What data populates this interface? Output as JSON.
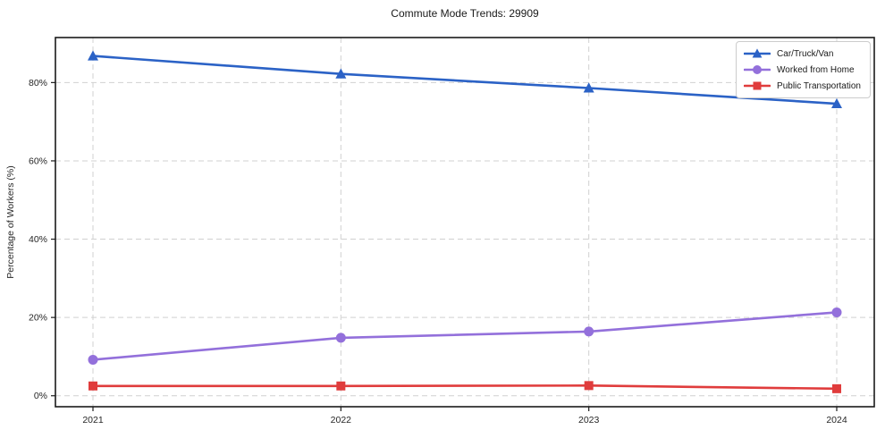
{
  "chart_data": {
    "type": "line",
    "title": "Commute Mode Trends: 29909",
    "xlabel": "",
    "ylabel": "Percentage of Workers (%)",
    "categories": [
      "2021",
      "2022",
      "2023",
      "2024"
    ],
    "series": [
      {
        "name": "Car/Truck/Van",
        "values": [
          86.8,
          82.2,
          78.6,
          74.6
        ],
        "color": "#2b62c6",
        "marker": "triangle"
      },
      {
        "name": "Worked from Home",
        "values": [
          9.2,
          14.8,
          16.4,
          21.3
        ],
        "color": "#9370db",
        "marker": "circle"
      },
      {
        "name": "Public Transportation",
        "values": [
          2.5,
          2.5,
          2.6,
          1.8
        ],
        "color": "#e03c3c",
        "marker": "square"
      }
    ],
    "yticks": [
      {
        "label": "0%",
        "value": 0
      },
      {
        "label": "20%",
        "value": 20
      },
      {
        "label": "40%",
        "value": 40
      },
      {
        "label": "60%",
        "value": 60
      },
      {
        "label": "80%",
        "value": 80
      }
    ],
    "ylim": [
      -2.8,
      91.5
    ],
    "grid": "dashed-both",
    "legend_position": "upper right",
    "colors": {
      "grid": "#d0d0d0",
      "axis": "#1a1a1a",
      "tick_text": "#262626"
    }
  }
}
